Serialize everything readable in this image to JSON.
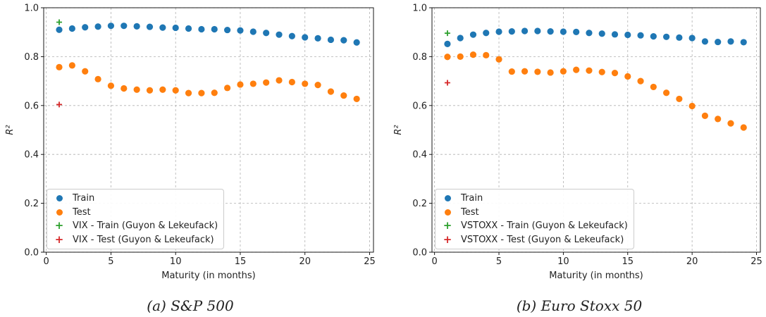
{
  "chart_data": [
    {
      "type": "scatter",
      "caption": "(a) S&P 500",
      "xlabel": "Maturity (in months)",
      "ylabel": "R²",
      "xlim": [
        -0.2,
        25.3
      ],
      "ylim": [
        0.0,
        1.0
      ],
      "xticks": [
        0,
        5,
        10,
        15,
        20,
        25
      ],
      "yticks": [
        0.0,
        0.2,
        0.4,
        0.6,
        0.8,
        1.0
      ],
      "grid": true,
      "legend_position": "lower-left",
      "series": [
        {
          "name": "Train",
          "marker": "circle",
          "color": "#1f77b4",
          "x": [
            1,
            2,
            3,
            4,
            5,
            6,
            7,
            8,
            9,
            10,
            11,
            12,
            13,
            14,
            15,
            16,
            17,
            18,
            19,
            20,
            21,
            22,
            23,
            24
          ],
          "y": [
            0.91,
            0.915,
            0.92,
            0.923,
            0.926,
            0.926,
            0.924,
            0.922,
            0.919,
            0.918,
            0.915,
            0.912,
            0.912,
            0.909,
            0.907,
            0.902,
            0.897,
            0.89,
            0.884,
            0.879,
            0.875,
            0.869,
            0.867,
            0.858
          ]
        },
        {
          "name": "Test",
          "marker": "circle",
          "color": "#ff7f0e",
          "x": [
            1,
            2,
            3,
            4,
            5,
            6,
            7,
            8,
            9,
            10,
            11,
            12,
            13,
            14,
            15,
            16,
            17,
            18,
            19,
            20,
            21,
            22,
            23,
            24
          ],
          "y": [
            0.757,
            0.764,
            0.74,
            0.708,
            0.681,
            0.67,
            0.665,
            0.662,
            0.665,
            0.662,
            0.651,
            0.651,
            0.652,
            0.672,
            0.686,
            0.689,
            0.694,
            0.703,
            0.696,
            0.689,
            0.684,
            0.657,
            0.641,
            0.627
          ]
        },
        {
          "name": "VIX - Train (Guyon & Lekeufack)",
          "marker": "plus",
          "color": "#2ca02c",
          "x": [
            1
          ],
          "y": [
            0.941
          ]
        },
        {
          "name": "VIX - Test (Guyon & Lekeufack)",
          "marker": "plus",
          "color": "#d62728",
          "x": [
            1
          ],
          "y": [
            0.604
          ]
        }
      ]
    },
    {
      "type": "scatter",
      "caption": "(b) Euro Stoxx 50",
      "xlabel": "Maturity (in months)",
      "ylabel": "R²",
      "xlim": [
        -0.2,
        25.3
      ],
      "ylim": [
        0.0,
        1.0
      ],
      "xticks": [
        0,
        5,
        10,
        15,
        20,
        25
      ],
      "yticks": [
        0.0,
        0.2,
        0.4,
        0.6,
        0.8,
        1.0
      ],
      "grid": true,
      "legend_position": "lower-left",
      "series": [
        {
          "name": "Train",
          "marker": "circle",
          "color": "#1f77b4",
          "x": [
            1,
            2,
            3,
            4,
            5,
            6,
            7,
            8,
            9,
            10,
            11,
            12,
            13,
            14,
            15,
            16,
            17,
            18,
            19,
            20,
            21,
            22,
            23,
            24
          ],
          "y": [
            0.852,
            0.876,
            0.89,
            0.897,
            0.902,
            0.903,
            0.905,
            0.905,
            0.903,
            0.902,
            0.901,
            0.897,
            0.894,
            0.891,
            0.889,
            0.887,
            0.883,
            0.881,
            0.878,
            0.876,
            0.862,
            0.86,
            0.862,
            0.859
          ]
        },
        {
          "name": "Test",
          "marker": "circle",
          "color": "#ff7f0e",
          "x": [
            1,
            2,
            3,
            4,
            5,
            6,
            7,
            8,
            9,
            10,
            11,
            12,
            13,
            14,
            15,
            16,
            17,
            18,
            19,
            20,
            21,
            22,
            23,
            24
          ],
          "y": [
            0.799,
            0.8,
            0.808,
            0.806,
            0.789,
            0.739,
            0.74,
            0.738,
            0.735,
            0.74,
            0.746,
            0.743,
            0.737,
            0.733,
            0.719,
            0.7,
            0.676,
            0.652,
            0.627,
            0.598,
            0.558,
            0.545,
            0.527,
            0.51
          ]
        },
        {
          "name": "VSTOXX - Train (Guyon & Lekeufack)",
          "marker": "plus",
          "color": "#2ca02c",
          "x": [
            1
          ],
          "y": [
            0.896
          ]
        },
        {
          "name": "VSTOXX - Test (Guyon & Lekeufack)",
          "marker": "plus",
          "color": "#d62728",
          "x": [
            1
          ],
          "y": [
            0.693
          ]
        }
      ]
    }
  ]
}
